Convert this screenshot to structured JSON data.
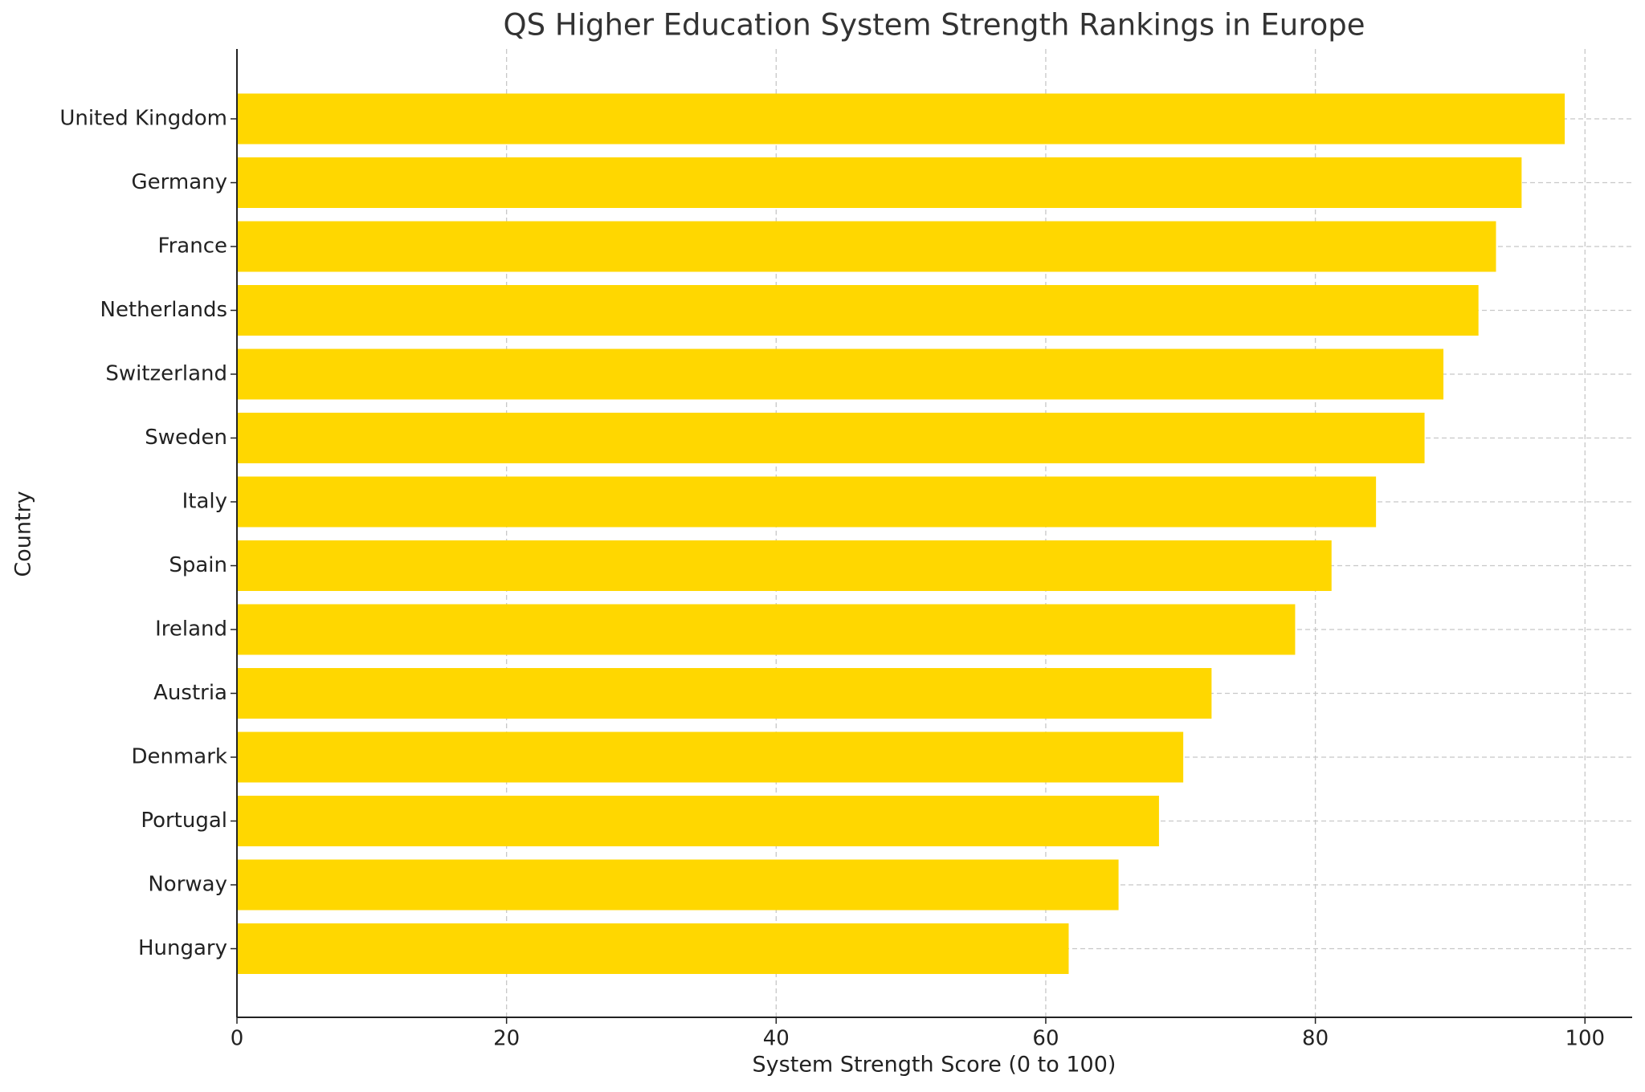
{
  "chart_data": {
    "type": "barh",
    "title": "QS Higher Education System Strength Rankings in Europe",
    "x_label": "System Strength Score (0 to 100)",
    "y_label": "Country",
    "categories": [
      "United Kingdom",
      "Germany",
      "France",
      "Netherlands",
      "Switzerland",
      "Sweden",
      "Italy",
      "Spain",
      "Ireland",
      "Austria",
      "Denmark",
      "Portugal",
      "Norway",
      "Hungary"
    ],
    "values": [
      98.5,
      95.3,
      93.4,
      92.1,
      89.5,
      88.1,
      84.5,
      81.2,
      78.5,
      72.3,
      70.2,
      68.4,
      65.4,
      61.7
    ],
    "color": "#FFD700",
    "xlim": [
      0,
      103.5
    ],
    "xticks": [
      0,
      20,
      40,
      60,
      80,
      100
    ],
    "grid": true
  }
}
